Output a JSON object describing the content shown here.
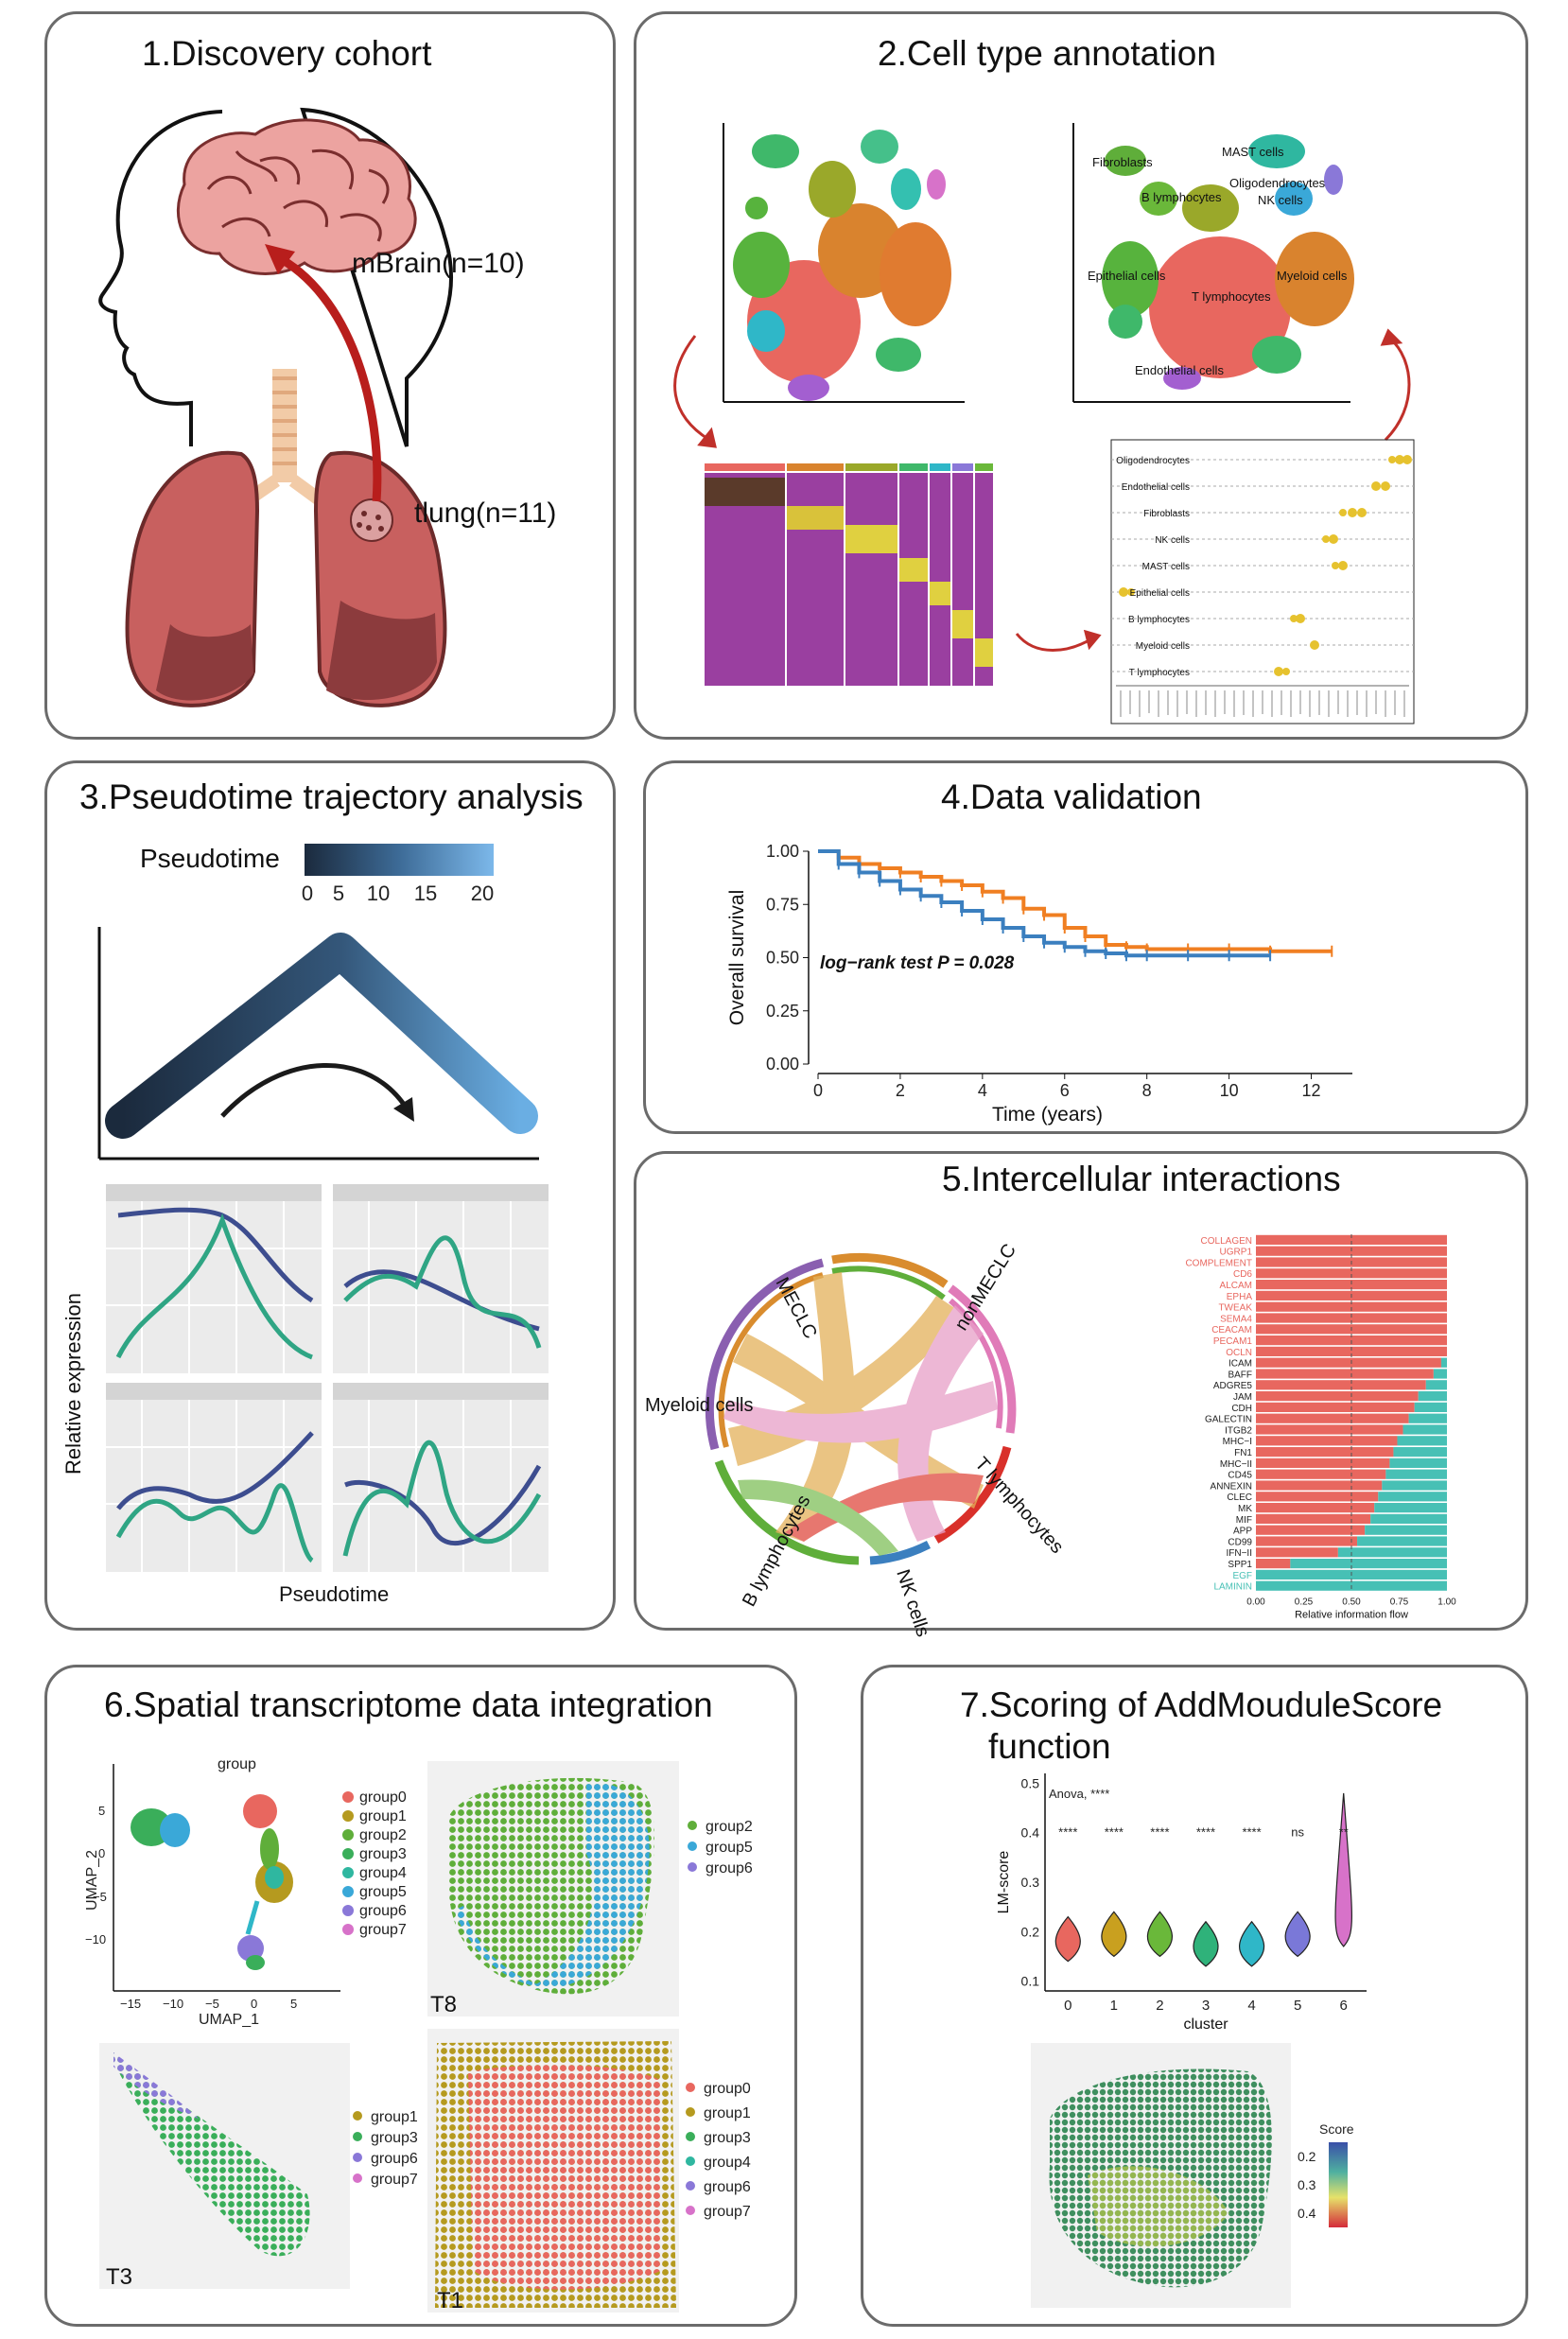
{
  "panel1": {
    "title": "1.Discovery cohort",
    "brain_label": "mBrain(n=10)",
    "lung_label": "tlung(n=11)",
    "colors": {
      "brain": "#e98a88",
      "lung": "#c8605f",
      "lung_dark": "#8c3b3d",
      "arrow": "#b81e1c"
    }
  },
  "panel2": {
    "title": "2.Cell type annotation",
    "tsne_labels": [
      "Fibroblasts",
      "MAST cells",
      "B lymphocytes",
      "Oligodendrocytes",
      "NK cells",
      "Epithelial cells",
      "T lymphocytes",
      "Myeloid cells",
      "Endothelial cells"
    ],
    "dotplot_labels": [
      "Oligodendrocytes",
      "Endothelial cells",
      "Fibroblasts",
      "NK cells",
      "MAST cells",
      "Epithelial cells",
      "B lymphocytes",
      "Myeloid cells",
      "T lymphocytes"
    ],
    "colors": {
      "t_cells": "#e8675f",
      "myeloid": "#d9832e",
      "heatmap": "#9a3fa0",
      "dot": "#e6c22e"
    }
  },
  "panel3": {
    "title": "3.Pseudotime trajectory analysis",
    "legend_title": "Pseudotime",
    "legend_ticks": [
      "0",
      "5",
      "10",
      "15",
      "20"
    ],
    "ylabel": "Relative expression",
    "xlabel": "Pseudotime",
    "colors": {
      "dark": "#1b2a3d",
      "light": "#7cb8ea",
      "green": "#2fa584",
      "blue": "#3d4d8f"
    }
  },
  "panel4": {
    "title": "4.Data validation",
    "chart_data": {
      "type": "line",
      "xlabel": "Time (years)",
      "ylabel": "Overall survival",
      "xticks": [
        "0",
        "2",
        "4",
        "6",
        "8",
        "10",
        "12"
      ],
      "yticks": [
        "0.00",
        "0.25",
        "0.50",
        "0.75",
        "1.00"
      ],
      "xlim": [
        0,
        13
      ],
      "ylim": [
        0,
        1
      ],
      "annotation": "log−rank test P = 0.028",
      "series": [
        {
          "color": "#f07f22",
          "x": [
            0,
            0.5,
            1,
            1.5,
            2,
            2.5,
            3,
            3.5,
            4,
            4.5,
            5,
            5.5,
            6,
            6.5,
            7,
            7.5,
            8,
            9,
            10,
            11,
            12.5
          ],
          "y": [
            1.0,
            0.97,
            0.94,
            0.92,
            0.9,
            0.88,
            0.86,
            0.84,
            0.81,
            0.78,
            0.73,
            0.7,
            0.64,
            0.6,
            0.56,
            0.55,
            0.54,
            0.54,
            0.54,
            0.53,
            0.53
          ]
        },
        {
          "color": "#3b7fbf",
          "x": [
            0,
            0.5,
            1,
            1.5,
            2,
            2.5,
            3,
            3.5,
            4,
            4.5,
            5,
            5.5,
            6,
            6.5,
            7,
            7.5,
            8,
            9,
            10,
            11
          ],
          "y": [
            1.0,
            0.94,
            0.9,
            0.86,
            0.82,
            0.79,
            0.76,
            0.72,
            0.68,
            0.64,
            0.6,
            0.57,
            0.55,
            0.53,
            0.52,
            0.51,
            0.51,
            0.51,
            0.51,
            0.51
          ]
        }
      ]
    }
  },
  "panel5": {
    "title": "5.Intercellular interactions",
    "chord_labels": [
      "MECLC",
      "nonMECLC",
      "Myeloid cells",
      "T lymphocytes",
      "B lymphocytes",
      "NK cells"
    ],
    "chart_data": {
      "type": "bar",
      "xlabel": "Relative information flow",
      "xticks": [
        "0.00",
        "0.25",
        "0.50",
        "0.75",
        "1.00"
      ],
      "xlim": [
        0,
        1
      ],
      "categories": [
        "COLLAGEN",
        "UGRP1",
        "COMPLEMENT",
        "CD6",
        "ALCAM",
        "EPHA",
        "TWEAK",
        "SEMA4",
        "CEACAM",
        "PECAM1",
        "OCLN",
        "ICAM",
        "BAFF",
        "ADGRE5",
        "JAM",
        "CDH",
        "GALECTIN",
        "ITGB2",
        "MHC−I",
        "FN1",
        "MHC−II",
        "CD45",
        "ANNEXIN",
        "CLEC",
        "MK",
        "MIF",
        "APP",
        "CD99",
        "IFN−II",
        "SPP1",
        "EGF",
        "LAMININ"
      ],
      "series": [
        {
          "color": "#e8675f",
          "values": [
            1,
            1,
            1,
            1,
            1,
            1,
            1,
            1,
            1,
            1,
            1,
            0.97,
            0.93,
            0.89,
            0.85,
            0.83,
            0.8,
            0.77,
            0.74,
            0.72,
            0.7,
            0.68,
            0.66,
            0.64,
            0.62,
            0.6,
            0.57,
            0.53,
            0.43,
            0.18,
            0,
            0
          ]
        },
        {
          "color": "#47c0b5",
          "values": [
            0,
            0,
            0,
            0,
            0,
            0,
            0,
            0,
            0,
            0,
            0,
            0.03,
            0.07,
            0.11,
            0.15,
            0.17,
            0.2,
            0.23,
            0.26,
            0.28,
            0.3,
            0.32,
            0.34,
            0.36,
            0.38,
            0.4,
            0.43,
            0.47,
            0.57,
            0.82,
            1,
            1
          ]
        }
      ],
      "label_colors_red_until": 11
    }
  },
  "panel6": {
    "title": "6.Spatial transcriptome data integration",
    "umap_title": "group",
    "umap_xlabel": "UMAP_1",
    "umap_ylabel": "UMAP_2",
    "umap_xticks": [
      "−15",
      "−10",
      "−5",
      "0",
      "5"
    ],
    "umap_yticks": [
      "5",
      "0",
      "−5",
      "−10"
    ],
    "groups": [
      {
        "name": "group0",
        "color": "#e8675f"
      },
      {
        "name": "group1",
        "color": "#b59a1f"
      },
      {
        "name": "group2",
        "color": "#5fae3a"
      },
      {
        "name": "group3",
        "color": "#3aae5a"
      },
      {
        "name": "group4",
        "color": "#2fb7a0"
      },
      {
        "name": "group5",
        "color": "#3aa8d8"
      },
      {
        "name": "group6",
        "color": "#8a78d8"
      },
      {
        "name": "group7",
        "color": "#d772c9"
      }
    ],
    "t8": {
      "label": "T8",
      "legend": [
        "group2",
        "group5",
        "group6"
      ]
    },
    "t3": {
      "label": "T3",
      "legend": [
        "group1",
        "group3",
        "group6",
        "group7"
      ]
    },
    "t1": {
      "label": "T1",
      "legend": [
        "group0",
        "group1",
        "group3",
        "group4",
        "group6",
        "group7"
      ]
    }
  },
  "panel7": {
    "title_line1": "7.Scoring of AddMouduleScore",
    "title_line2": "function",
    "chart_data": {
      "type": "violin",
      "xlabel": "cluster",
      "ylabel": "LM-score",
      "categories": [
        "0",
        "1",
        "2",
        "3",
        "4",
        "5",
        "6"
      ],
      "yticks": [
        "0.1",
        "0.2",
        "0.3",
        "0.4",
        "0.5"
      ],
      "ylim": [
        0.08,
        0.52
      ],
      "medians": [
        0.18,
        0.19,
        0.19,
        0.17,
        0.17,
        0.19,
        0.21
      ],
      "significance": [
        "****",
        "****",
        "****",
        "****",
        "****",
        "ns",
        "**"
      ],
      "test_label": "Anova, ****",
      "colors": [
        "#e8675f",
        "#c9a01f",
        "#6ab83a",
        "#2fb27a",
        "#2fb7c8",
        "#7a78d8",
        "#d772c9"
      ]
    },
    "score_legend": {
      "title": "Score",
      "ticks": [
        "0.2",
        "0.3",
        "0.4"
      ]
    }
  }
}
